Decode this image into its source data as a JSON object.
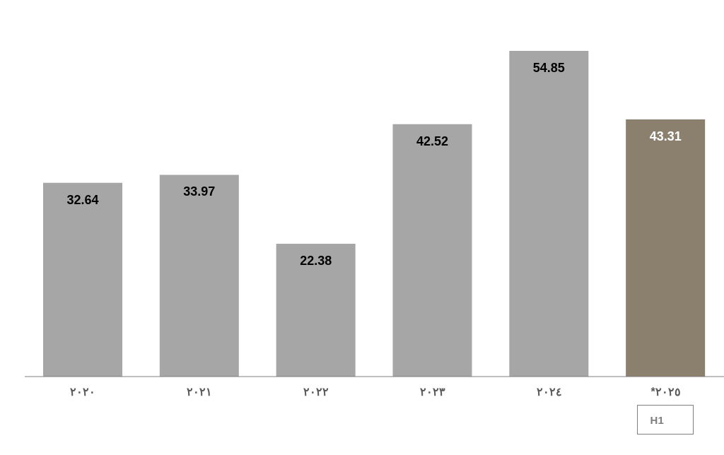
{
  "chart_data": {
    "type": "bar",
    "categories": [
      "٢٠٢٠",
      "٢٠٢١",
      "٢٠٢٢",
      "٢٠٢٣",
      "٢٠٢٤",
      "*٢٠٢٥"
    ],
    "values": [
      32.64,
      33.97,
      22.38,
      42.52,
      54.85,
      43.31
    ],
    "colors": [
      "#a6a6a6",
      "#a6a6a6",
      "#a6a6a6",
      "#a6a6a6",
      "#a6a6a6",
      "#8b7f6e"
    ],
    "tick_labels": "x",
    "data_labels": true,
    "grid": false,
    "legend": false,
    "annotations": [
      "H1"
    ]
  }
}
